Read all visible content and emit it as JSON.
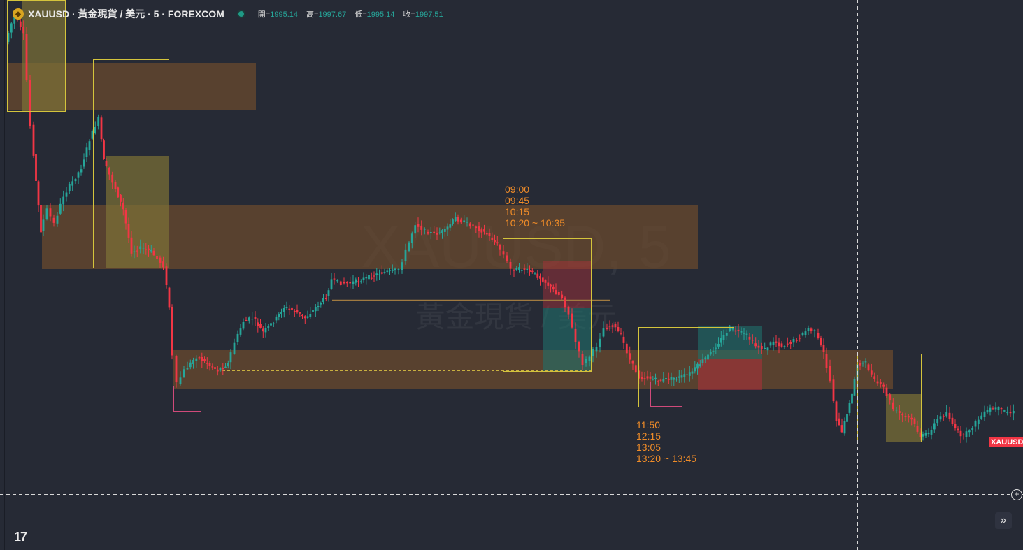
{
  "header": {
    "title": "XAUUSD · 黃金現貨 / 美元 · 5 · FOREXCOM",
    "ohlc": [
      {
        "label": "開=",
        "value": "1995.14"
      },
      {
        "label": "高=",
        "value": "1997.67"
      },
      {
        "label": "低=",
        "value": "1995.14"
      },
      {
        "label": "收=",
        "value": "1997.51"
      }
    ]
  },
  "watermark": {
    "line1": "XAUUSD, 5",
    "line2": "黃金現貨 / 美元"
  },
  "price_tag": "XAUUSD",
  "annotations": {
    "session1": [
      "09:00",
      "09:45",
      "10:15",
      "10:20 ~ 10:35"
    ],
    "session2": [
      "11:50",
      "12:15",
      "13:05",
      "13:20 ~ 13:45"
    ]
  },
  "buttons": {
    "scroll_label": "»",
    "plus_label": "+"
  },
  "logo": {
    "text": "17"
  },
  "colors": {
    "up": "#26a69a",
    "down": "#f23645",
    "zone": "#5a4030",
    "yellow": "#d4c43c"
  },
  "chart_data": {
    "type": "candlestick",
    "symbol": "XAUUSD",
    "timeframe": "5",
    "ohlc_last": {
      "open": 1995.14,
      "high": 1997.67,
      "low": 1995.14,
      "close": 1997.51
    }
  }
}
